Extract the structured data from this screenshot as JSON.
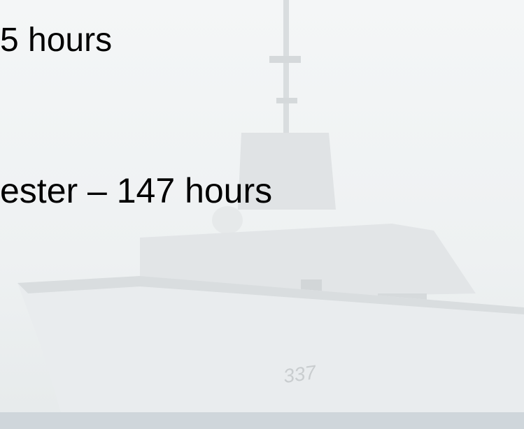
{
  "slide": {
    "lines": [
      "5 hours",
      "ester – 147 hours"
    ],
    "hull_number": "337"
  }
}
